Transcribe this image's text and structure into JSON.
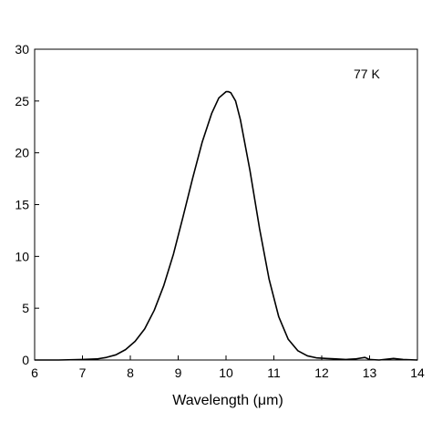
{
  "chart_data": {
    "type": "line",
    "title": "",
    "xlabel": "Wavelength (μm)",
    "ylabel": "",
    "xlim": [
      6,
      14
    ],
    "ylim": [
      0,
      30
    ],
    "xticks": [
      6,
      7,
      8,
      9,
      10,
      11,
      12,
      13,
      14
    ],
    "yticks": [
      0,
      5,
      10,
      15,
      20,
      25,
      30
    ],
    "grid": false,
    "legend": "none",
    "annotation": "77 K",
    "line_color": "#000000",
    "series": [
      {
        "x": [
          6.0,
          6.5,
          7.0,
          7.3,
          7.5,
          7.7,
          7.9,
          8.1,
          8.3,
          8.5,
          8.7,
          8.9,
          9.1,
          9.3,
          9.5,
          9.7,
          9.85,
          10.0,
          10.05,
          10.1,
          10.2,
          10.3,
          10.5,
          10.7,
          10.9,
          11.1,
          11.3,
          11.5,
          11.7,
          11.9,
          12.1,
          12.3,
          12.5,
          12.7,
          12.9,
          13.0,
          13.2,
          13.5,
          13.7,
          14.0
        ],
        "y": [
          0.0,
          0.0,
          0.05,
          0.1,
          0.25,
          0.5,
          1.0,
          1.8,
          3.0,
          4.8,
          7.2,
          10.2,
          13.8,
          17.5,
          21.0,
          23.8,
          25.3,
          25.9,
          25.9,
          25.8,
          25.0,
          23.2,
          18.3,
          12.7,
          7.8,
          4.2,
          2.0,
          0.9,
          0.4,
          0.2,
          0.15,
          0.1,
          0.05,
          0.1,
          0.25,
          0.05,
          0.0,
          0.15,
          0.05,
          0.0
        ]
      }
    ]
  }
}
